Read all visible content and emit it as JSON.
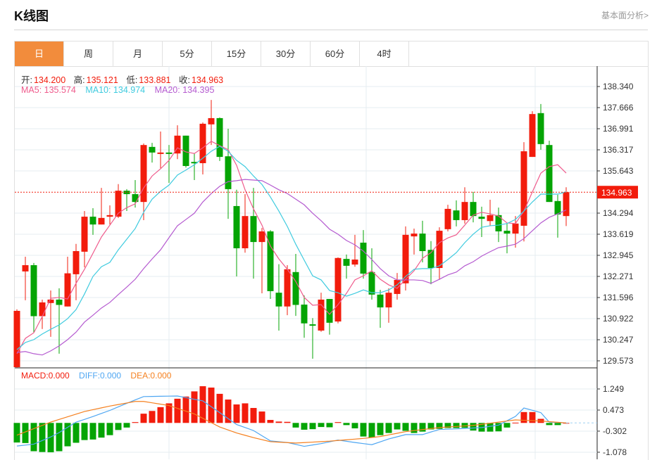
{
  "header": {
    "title": "K线图",
    "link": "基本面分析>"
  },
  "tabs": [
    {
      "label": "日",
      "active": true
    },
    {
      "label": "周"
    },
    {
      "label": "月"
    },
    {
      "label": "5分"
    },
    {
      "label": "15分"
    },
    {
      "label": "30分"
    },
    {
      "label": "60分"
    },
    {
      "label": "4时"
    }
  ],
  "ohlc_legend": {
    "open_label": "开:",
    "open": "134.200",
    "high_label": "高:",
    "high": "135.121",
    "low_label": "低:",
    "low": "133.881",
    "close_label": "收:",
    "close": "134.963"
  },
  "ma_legend": {
    "ma5": "MA5: 135.574",
    "ma10": "MA10: 134.974",
    "ma20": "MA20: 134.395"
  },
  "macd_legend": {
    "macd": "MACD:0.000",
    "diff": "DIFF:0.000",
    "dea": "DEA:0.000"
  },
  "colors": {
    "up": "#f21c0c",
    "down": "#04a404",
    "ma5": "#ef5b8c",
    "ma10": "#3fcbdf",
    "ma20": "#b55bd0",
    "diff": "#4ea6f2",
    "dea": "#f5801f",
    "accent": "#f28c3c"
  },
  "chart_data": {
    "type": "candlestick",
    "price_axis": {
      "ticks": [
        "138.340",
        "137.666",
        "136.991",
        "136.317",
        "135.643",
        "134.963",
        "134.294",
        "133.619",
        "132.945",
        "132.271",
        "131.596",
        "130.922",
        "130.247",
        "129.573"
      ],
      "range": [
        129.573,
        138.34
      ],
      "last_price": "134.963"
    },
    "candles": [
      [
        129.37,
        131.17,
        131.22,
        129.3
      ],
      [
        132.43,
        132.63,
        132.9,
        131.51
      ],
      [
        132.63,
        131.0,
        132.7,
        130.47
      ],
      [
        131.0,
        131.44,
        131.53,
        130.59
      ],
      [
        131.42,
        131.53,
        131.82,
        130.34
      ],
      [
        131.53,
        131.36,
        131.89,
        129.8
      ],
      [
        131.31,
        132.37,
        132.9,
        131.31
      ],
      [
        132.34,
        133.08,
        133.31,
        131.51
      ],
      [
        133.06,
        134.18,
        134.36,
        132.56
      ],
      [
        134.18,
        133.93,
        134.45,
        133.6
      ],
      [
        133.93,
        134.14,
        135.1,
        133.93
      ],
      [
        134.18,
        134.23,
        134.54,
        133.93
      ],
      [
        134.18,
        135.01,
        135.22,
        134.14
      ],
      [
        135.01,
        134.9,
        135.06,
        134.36
      ],
      [
        134.9,
        134.65,
        135.35,
        134.47
      ],
      [
        134.65,
        136.47,
        136.52,
        134.07
      ],
      [
        136.41,
        136.23,
        136.54,
        135.91
      ],
      [
        136.2,
        136.23,
        136.9,
        135.73
      ],
      [
        136.23,
        136.2,
        136.47,
        135.26
      ],
      [
        136.2,
        136.77,
        137.1,
        136.02
      ],
      [
        136.77,
        135.8,
        136.77,
        135.75
      ],
      [
        135.93,
        135.91,
        136.2,
        135.35
      ],
      [
        135.89,
        137.15,
        137.19,
        135.53
      ],
      [
        137.13,
        137.33,
        137.91,
        136.47
      ],
      [
        137.33,
        136.09,
        137.35,
        135.96
      ],
      [
        136.11,
        135.06,
        136.99,
        134.11
      ],
      [
        134.52,
        133.17,
        135.04,
        132.27
      ],
      [
        133.17,
        134.2,
        134.9,
        133.03
      ],
      [
        134.2,
        133.37,
        135.1,
        132.2
      ],
      [
        133.37,
        133.71,
        133.82,
        131.73
      ],
      [
        133.71,
        131.8,
        133.75,
        131.55
      ],
      [
        131.75,
        131.31,
        132.66,
        130.54
      ],
      [
        131.31,
        132.5,
        132.63,
        131.03
      ],
      [
        132.41,
        131.36,
        132.99,
        131.01
      ],
      [
        131.37,
        130.77,
        131.66,
        130.31
      ],
      [
        130.74,
        130.7,
        130.94,
        129.64
      ],
      [
        130.54,
        131.53,
        131.75,
        130.5
      ],
      [
        131.55,
        130.79,
        131.55,
        130.41
      ],
      [
        130.83,
        132.86,
        132.88,
        130.77
      ],
      [
        132.83,
        132.61,
        132.97,
        132.2
      ],
      [
        132.65,
        132.81,
        133.6,
        132.58
      ],
      [
        133.35,
        132.36,
        133.75,
        132.2
      ],
      [
        132.41,
        131.69,
        133.17,
        131.53
      ],
      [
        131.69,
        131.28,
        131.84,
        130.63
      ],
      [
        131.28,
        131.75,
        131.89,
        130.79
      ],
      [
        131.71,
        132.16,
        132.38,
        131.53
      ],
      [
        132.05,
        133.6,
        133.87,
        131.82
      ],
      [
        133.55,
        133.64,
        133.8,
        132.97
      ],
      [
        133.64,
        133.08,
        134.05,
        132.72
      ],
      [
        133.12,
        132.54,
        133.4,
        132.02
      ],
      [
        132.54,
        133.73,
        133.84,
        132.16
      ],
      [
        133.78,
        134.43,
        134.56,
        133.71
      ],
      [
        134.38,
        134.07,
        134.7,
        133.87
      ],
      [
        134.07,
        134.65,
        135.12,
        133.96
      ],
      [
        134.65,
        134.2,
        134.97,
        134.0
      ],
      [
        134.18,
        134.11,
        134.5,
        133.53
      ],
      [
        134.04,
        134.23,
        134.72,
        133.89
      ],
      [
        134.23,
        133.71,
        134.47,
        133.37
      ],
      [
        133.73,
        133.64,
        133.96,
        133.01
      ],
      [
        133.64,
        133.96,
        134.2,
        133.19
      ],
      [
        133.89,
        136.27,
        136.56,
        133.39
      ],
      [
        136.09,
        137.46,
        137.55,
        136.09
      ],
      [
        137.49,
        136.5,
        137.78,
        136.32
      ],
      [
        136.47,
        134.65,
        136.61,
        134.65
      ],
      [
        134.68,
        134.25,
        134.88,
        133.51
      ],
      [
        134.2,
        134.963,
        135.121,
        133.881
      ]
    ],
    "ma5": [
      129.8,
      130.29,
      130.47,
      130.99,
      131.57,
      131.6,
      131.55,
      132.05,
      132.5,
      133.01,
      133.53,
      133.91,
      134.29,
      134.47,
      134.59,
      135.1,
      135.48,
      135.71,
      135.98,
      136.38,
      136.25,
      136.2,
      136.38,
      136.59,
      136.45,
      136.32,
      135.82,
      135.04,
      134.43,
      133.91,
      133.24,
      132.83,
      132.5,
      132.11,
      131.6,
      131.35,
      131.37,
      131.06,
      131.37,
      131.73,
      132.16,
      132.29,
      132.45,
      132.18,
      132.0,
      131.89,
      132.18,
      132.45,
      132.85,
      133.03,
      133.35,
      133.5,
      133.6,
      133.91,
      134.23,
      134.32,
      134.27,
      134.2,
      133.98,
      133.96,
      134.36,
      134.97,
      135.57,
      135.78,
      135.84,
      135.574
    ],
    "ma10": [
      129.93,
      130.16,
      130.25,
      130.43,
      130.58,
      130.72,
      130.92,
      131.21,
      131.71,
      132.27,
      132.58,
      132.72,
      133.12,
      133.46,
      133.8,
      134.32,
      134.74,
      134.99,
      135.19,
      135.51,
      135.67,
      135.84,
      136.05,
      136.27,
      136.43,
      136.27,
      135.98,
      135.78,
      135.48,
      135.21,
      134.81,
      134.36,
      133.87,
      133.3,
      132.79,
      132.29,
      132.16,
      131.82,
      131.75,
      131.64,
      131.73,
      131.84,
      131.75,
      131.75,
      131.84,
      132.0,
      132.27,
      132.5,
      132.52,
      132.52,
      132.61,
      132.81,
      133.03,
      133.35,
      133.62,
      133.84,
      133.89,
      133.91,
      133.96,
      134.09,
      134.36,
      134.65,
      134.9,
      134.9,
      134.9,
      134.974
    ],
    "ma20": [
      129.84,
      129.87,
      129.8,
      129.76,
      129.89,
      130.05,
      130.25,
      130.49,
      130.81,
      131.03,
      131.26,
      131.44,
      131.69,
      131.93,
      132.18,
      132.52,
      132.83,
      133.12,
      133.51,
      133.89,
      134.09,
      134.29,
      134.65,
      134.92,
      135.15,
      135.3,
      135.33,
      135.37,
      135.35,
      135.33,
      135.19,
      135.04,
      134.92,
      134.74,
      134.56,
      134.29,
      134.05,
      133.78,
      133.62,
      133.42,
      133.28,
      133.08,
      132.81,
      132.52,
      132.29,
      132.16,
      132.16,
      132.16,
      132.14,
      132.05,
      132.18,
      132.32,
      132.41,
      132.61,
      132.74,
      132.92,
      133.06,
      133.19,
      133.24,
      133.3,
      133.48,
      133.73,
      133.98,
      134.16,
      134.27,
      134.395
    ],
    "macd": {
      "ticks": [
        "1.249",
        "0.473",
        "-0.302",
        "-1.078"
      ],
      "hist": [
        -0.72,
        -0.74,
        -1.04,
        -1.07,
        -1.08,
        -1.04,
        -0.86,
        -0.73,
        -0.63,
        -0.61,
        -0.54,
        -0.45,
        -0.26,
        -0.17,
        0.03,
        0.34,
        0.44,
        0.58,
        0.72,
        0.89,
        0.97,
        1.16,
        1.35,
        1.3,
        1.07,
        0.86,
        0.68,
        0.72,
        0.55,
        0.42,
        0.11,
        0.05,
        0.04,
        -0.17,
        -0.25,
        -0.23,
        -0.15,
        -0.16,
        0.03,
        -0.08,
        -0.2,
        -0.5,
        -0.54,
        -0.45,
        -0.37,
        -0.24,
        -0.29,
        -0.37,
        -0.32,
        -0.24,
        -0.22,
        -0.19,
        -0.19,
        -0.18,
        -0.28,
        -0.32,
        -0.32,
        -0.31,
        -0.17,
        0.01,
        0.4,
        0.4,
        0.15,
        -0.08,
        -0.08,
        0.0
      ],
      "diff_points": [
        [
          1,
          -0.85
        ],
        [
          3,
          -0.78
        ],
        [
          5.5,
          -0.45
        ],
        [
          8,
          0.03
        ],
        [
          9.5,
          0.18
        ],
        [
          12,
          0.46
        ],
        [
          14,
          0.72
        ],
        [
          16,
          0.97
        ],
        [
          20,
          0.99
        ],
        [
          23,
          0.81
        ],
        [
          25,
          0.38
        ],
        [
          27,
          -0.06
        ],
        [
          29,
          -0.28
        ],
        [
          31,
          -0.66
        ],
        [
          33,
          -0.72
        ],
        [
          35,
          -0.86
        ],
        [
          37,
          -0.76
        ],
        [
          39,
          -0.63
        ],
        [
          41,
          -0.72
        ],
        [
          43,
          -0.8
        ],
        [
          45,
          -0.59
        ],
        [
          47,
          -0.43
        ],
        [
          49,
          -0.43
        ],
        [
          51,
          -0.24
        ],
        [
          53,
          -0.22
        ],
        [
          56,
          -0.17
        ],
        [
          58,
          -0.08
        ],
        [
          60,
          0.24
        ],
        [
          61,
          0.55
        ],
        [
          63,
          0.38
        ],
        [
          64,
          0.03
        ],
        [
          66,
          0.0
        ]
      ],
      "dea_points": [
        [
          1,
          -0.45
        ],
        [
          5,
          0.03
        ],
        [
          9,
          0.42
        ],
        [
          12,
          0.62
        ],
        [
          15,
          0.79
        ],
        [
          16,
          0.79
        ],
        [
          19,
          0.64
        ],
        [
          22,
          0.33
        ],
        [
          25,
          -0.15
        ],
        [
          27,
          -0.37
        ],
        [
          29,
          -0.54
        ],
        [
          31,
          -0.69
        ],
        [
          34,
          -0.74
        ],
        [
          38,
          -0.67
        ],
        [
          42,
          -0.57
        ],
        [
          44,
          -0.5
        ],
        [
          47,
          -0.32
        ],
        [
          51,
          -0.17
        ],
        [
          55,
          -0.09
        ],
        [
          59,
          0.07
        ],
        [
          60,
          0.11
        ],
        [
          63,
          0.07
        ],
        [
          66,
          0.0
        ]
      ]
    }
  }
}
